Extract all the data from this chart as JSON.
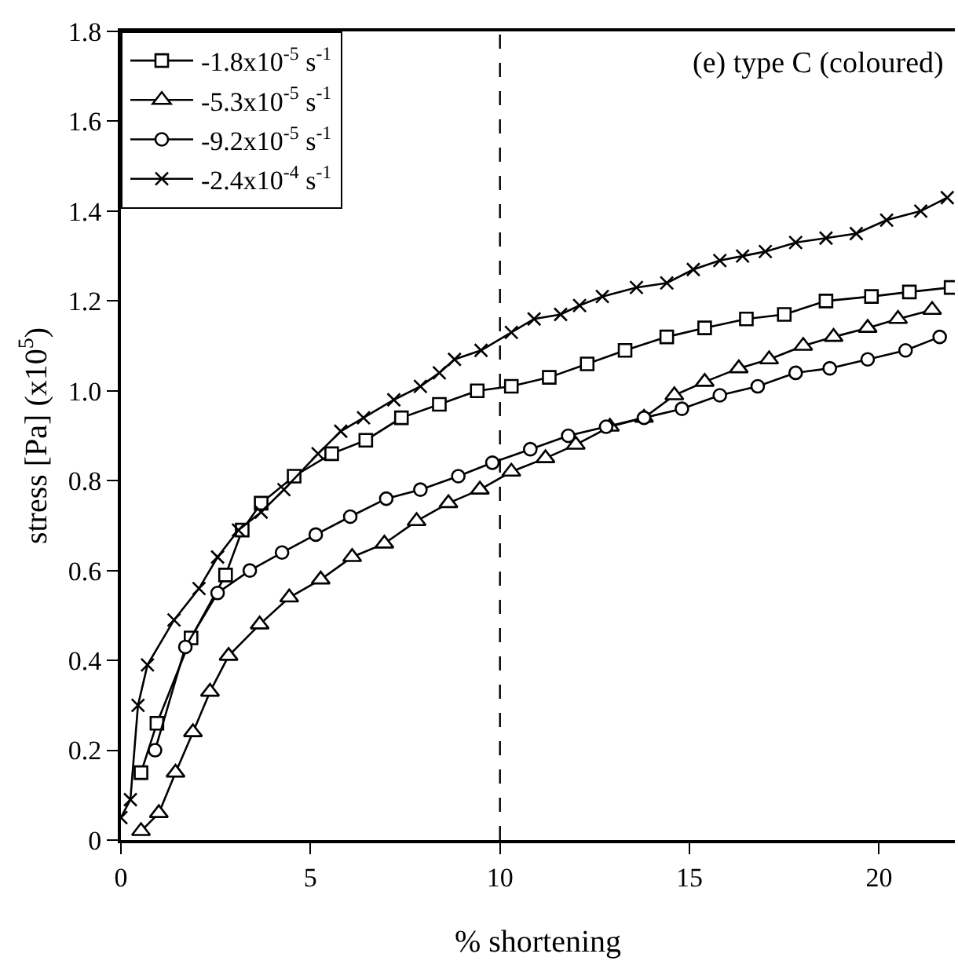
{
  "chart_data": {
    "type": "line",
    "title": "(e) type C (coloured)",
    "xlabel": "% shortening",
    "ylabel": "stress [Pa] (x10$^{5}$)",
    "xlim": [
      0,
      22
    ],
    "xticks": [
      0,
      5,
      10,
      15,
      20
    ],
    "ylim": [
      0,
      1.8
    ],
    "yticks": [
      0,
      0.2,
      0.4,
      0.6,
      0.8,
      {
        "value": 1,
        "label": "1.0"
      },
      1.2,
      1.4,
      1.6,
      1.8
    ],
    "grid": false,
    "legend": "top left",
    "line_style": "solid",
    "ref_lines": [
      {
        "axis": "x",
        "value": 10,
        "line_style": "dashed",
        "color": "#000000"
      }
    ],
    "series": [
      {
        "name": "-1.8x10$^{-5}$ s$^{-1}$",
        "color": "#000000",
        "marker": "square",
        "x": [
          0.53,
          0.95,
          1.85,
          2.76,
          3.2,
          3.7,
          4.57,
          5.56,
          6.46,
          7.4,
          8.4,
          9.4,
          10.3,
          11.3,
          12.3,
          13.3,
          14.4,
          15.4,
          16.5,
          17.5,
          18.6,
          19.8,
          20.8,
          21.9
        ],
        "values": [
          0.15,
          0.26,
          0.45,
          0.59,
          0.69,
          0.75,
          0.81,
          0.86,
          0.89,
          0.94,
          0.97,
          1.0,
          1.01,
          1.03,
          1.06,
          1.09,
          1.12,
          1.14,
          1.16,
          1.17,
          1.2,
          1.21,
          1.22,
          1.23
        ]
      },
      {
        "name": "-5.3x10$^{-5}$ s$^{-1}$",
        "color": "#000000",
        "marker": "triangle",
        "x": [
          0.53,
          1.0,
          1.44,
          1.9,
          2.35,
          2.84,
          3.66,
          4.44,
          5.27,
          6.1,
          6.95,
          7.8,
          8.64,
          9.47,
          10.3,
          11.2,
          12.0,
          12.9,
          13.8,
          14.6,
          15.4,
          16.3,
          17.1,
          18.0,
          18.8,
          19.7,
          20.5,
          21.4
        ],
        "values": [
          0.02,
          0.06,
          0.15,
          0.24,
          0.33,
          0.41,
          0.48,
          0.54,
          0.58,
          0.63,
          0.66,
          0.71,
          0.75,
          0.78,
          0.82,
          0.85,
          0.88,
          0.92,
          0.94,
          0.99,
          1.02,
          1.05,
          1.07,
          1.1,
          1.12,
          1.14,
          1.16,
          1.18
        ]
      },
      {
        "name": "-9.2x10$^{-5}$ s$^{-1}$",
        "color": "#000000",
        "marker": "circle",
        "x": [
          0.9,
          1.7,
          2.55,
          3.4,
          4.25,
          5.14,
          6.05,
          7.0,
          7.9,
          8.9,
          9.8,
          10.8,
          11.8,
          12.8,
          13.8,
          14.8,
          15.8,
          16.8,
          17.8,
          18.7,
          19.7,
          20.7,
          21.6
        ],
        "values": [
          0.2,
          0.43,
          0.55,
          0.6,
          0.64,
          0.68,
          0.72,
          0.76,
          0.78,
          0.81,
          0.84,
          0.87,
          0.9,
          0.92,
          0.94,
          0.96,
          0.99,
          1.01,
          1.04,
          1.05,
          1.07,
          1.09,
          1.12
        ]
      },
      {
        "name": "-2.4x10$^{-4}$ s$^{-1}$",
        "color": "#000000",
        "marker": "cross",
        "x": [
          0,
          0.25,
          0.45,
          0.7,
          1.4,
          2.06,
          2.55,
          3.1,
          3.7,
          4.3,
          5.2,
          5.8,
          6.4,
          7.2,
          7.9,
          8.4,
          8.8,
          9.5,
          10.3,
          10.9,
          11.6,
          12.1,
          12.7,
          13.6,
          14.4,
          15.1,
          15.8,
          16.4,
          17.0,
          17.8,
          18.6,
          19.4,
          20.2,
          21.1,
          21.8
        ],
        "values": [
          0.05,
          0.09,
          0.3,
          0.39,
          0.49,
          0.56,
          0.63,
          0.69,
          0.73,
          0.78,
          0.86,
          0.91,
          0.94,
          0.98,
          1.01,
          1.04,
          1.07,
          1.09,
          1.13,
          1.16,
          1.17,
          1.19,
          1.21,
          1.23,
          1.24,
          1.27,
          1.29,
          1.3,
          1.31,
          1.33,
          1.34,
          1.35,
          1.38,
          1.4,
          1.43
        ]
      }
    ]
  }
}
